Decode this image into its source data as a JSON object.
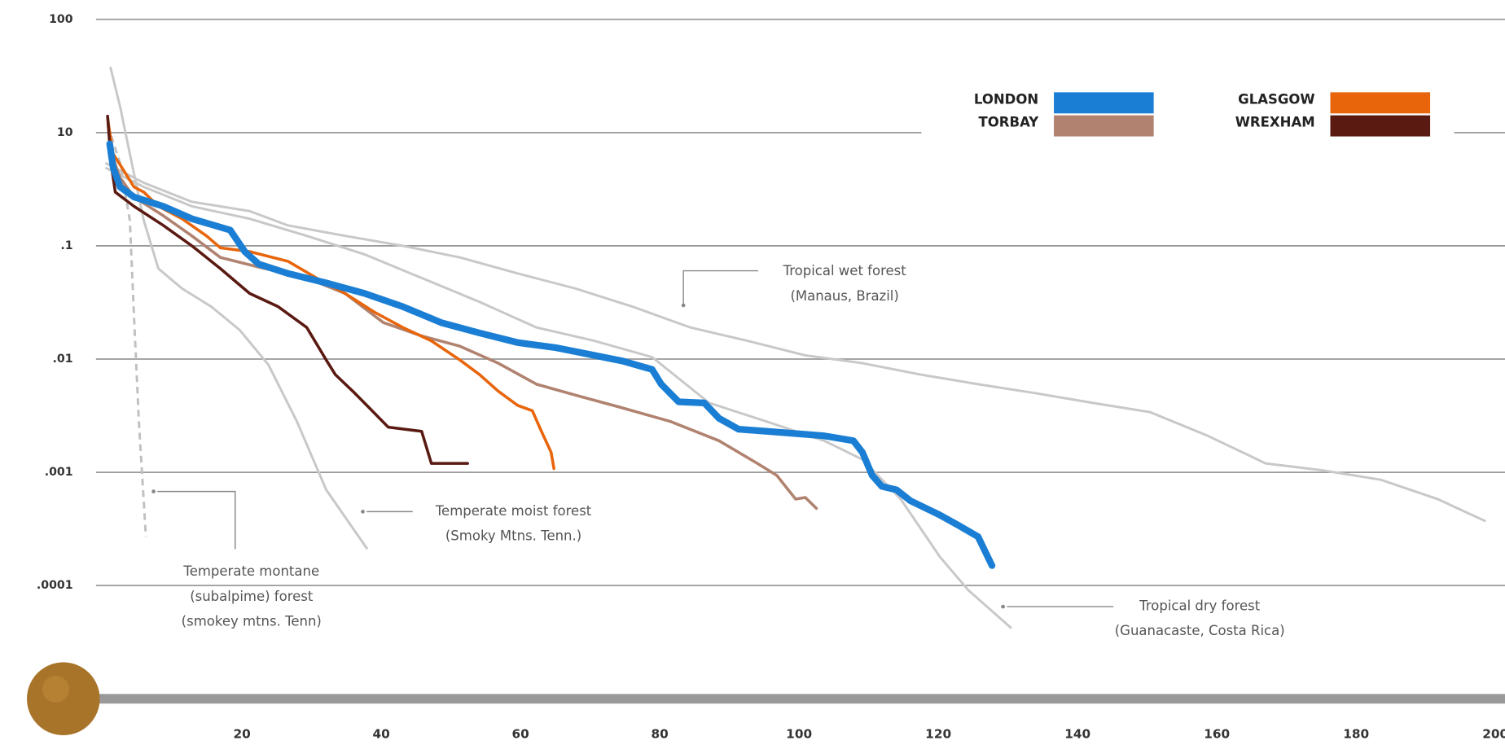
{
  "chart_data": {
    "type": "line",
    "yscale": "log",
    "grid": true,
    "legend": "top-right",
    "xlim": [
      0,
      200
    ],
    "xticks": [
      20,
      40,
      60,
      80,
      100,
      120,
      140,
      160,
      180,
      200
    ],
    "ylim": [
      1e-05,
      100
    ],
    "yticks": [
      100,
      10,
      {
        "value": 0.1,
        "label": ".1"
      },
      {
        "value": 0.01,
        "label": ".01"
      },
      {
        "value": 0.001,
        "label": ".001"
      },
      {
        "value": 0.0001,
        "label": ".0001"
      }
    ],
    "series": [
      {
        "name": "LONDON",
        "color": "#1a7fd4",
        "x": [
          1,
          1.5,
          2.5,
          4.5,
          8.7,
          12.8,
          18.3,
          20.4,
          22.4,
          26.6,
          32.1,
          37.6,
          43.1,
          48.6,
          54.1,
          59.6,
          65.1,
          70.6,
          74.7,
          78.9,
          80.2,
          82.7,
          86.4,
          88.5,
          91.3,
          95.4,
          103.6,
          107.8,
          109.1,
          110.5,
          111.9,
          114,
          116,
          120.2,
          122.9,
          125.7,
          127.7
        ],
        "values": [
          6.3,
          2.4,
          1.1,
          0.73,
          0.5,
          0.3,
          0.19,
          0.089,
          0.069,
          0.057,
          0.047,
          0.038,
          0.029,
          0.021,
          0.017,
          0.014,
          0.0126,
          0.0108,
          0.0096,
          0.0081,
          0.006,
          0.0042,
          0.0041,
          0.003,
          0.0024,
          0.0023,
          0.0021,
          0.0019,
          0.0015,
          0.00094,
          0.00075,
          0.0007,
          0.00056,
          0.00042,
          0.00034,
          0.00027,
          0.00015
        ]
      },
      {
        "name": "TORBAY",
        "color": "#b0826f",
        "x": [
          0.7,
          1.5,
          2.5,
          4.5,
          8.7,
          12.8,
          16.9,
          22.4,
          29.3,
          34.8,
          40.3,
          45.8,
          51.3,
          56.8,
          62.3,
          67.9,
          74.7,
          81.6,
          88.5,
          94,
          96.8,
          99.5,
          100.9,
          102.5
        ],
        "values": [
          13.7,
          3.5,
          1.6,
          0.73,
          0.34,
          0.15,
          0.079,
          0.065,
          0.052,
          0.038,
          0.021,
          0.016,
          0.013,
          0.0092,
          0.006,
          0.0048,
          0.0037,
          0.0028,
          0.0019,
          0.0012,
          0.00094,
          0.00058,
          0.0006,
          0.00048
        ]
      },
      {
        "name": "GLASGOW",
        "color": "#e8650c",
        "x": [
          0.8,
          1.5,
          2.5,
          4.5,
          5.9,
          8,
          11.4,
          14.9,
          16.9,
          21.1,
          26.6,
          30.7,
          34.8,
          39,
          43.1,
          47.2,
          51.3,
          54.1,
          56.8,
          59.6,
          61.7,
          63,
          64.4,
          64.8
        ],
        "values": [
          12,
          4.2,
          2.7,
          1.1,
          0.89,
          0.5,
          0.3,
          0.15,
          0.096,
          0.089,
          0.073,
          0.052,
          0.038,
          0.026,
          0.019,
          0.0145,
          0.0098,
          0.0073,
          0.0052,
          0.0039,
          0.0035,
          0.0023,
          0.0015,
          0.00108
        ]
      },
      {
        "name": "WREXHAM",
        "color": "#5a1a12",
        "x": [
          0.7,
          1.2,
          1.8,
          4.5,
          8.7,
          12.8,
          16.9,
          21.1,
          25.2,
          29.3,
          32.1,
          33.4,
          36.2,
          38.3,
          41,
          45.8,
          47.2,
          52.4
        ],
        "values": [
          14,
          2.9,
          0.89,
          0.5,
          0.23,
          0.1,
          0.063,
          0.038,
          0.029,
          0.019,
          0.0098,
          0.0073,
          0.005,
          0.0037,
          0.0025,
          0.0023,
          0.0012,
          0.0012
        ]
      }
    ],
    "reference_series": [
      {
        "label": [
          "Tropical wet forest",
          "(Manaus, Brazil)"
        ],
        "color": "#c8c8c8",
        "dashed": false,
        "x": [
          0.4,
          5.9,
          12.8,
          21.1,
          26.6,
          34.8,
          43.1,
          51.3,
          59.6,
          67.9,
          76.1,
          84.4,
          92.6,
          100.9,
          109.1,
          117.4,
          125.7,
          133.9,
          142.2,
          150.4,
          158.7,
          167,
          175.2,
          183.5,
          191.7,
          198.6
        ],
        "values": [
          2.9,
          1.3,
          0.6,
          0.41,
          0.23,
          0.15,
          0.1,
          0.079,
          0.057,
          0.042,
          0.029,
          0.019,
          0.0145,
          0.0108,
          0.0092,
          0.0073,
          0.006,
          0.005,
          0.0041,
          0.0034,
          0.0021,
          0.0012,
          0.00104,
          0.00086,
          0.00058,
          0.00037
        ]
      },
      {
        "label": [
          "Temperate moist forest",
          "(Smoky Mtns. Tenn.)"
        ],
        "color": "#c8c8c8",
        "dashed": false,
        "x": [
          1.1,
          2.5,
          3.9,
          5.9,
          8,
          11.4,
          15.6,
          19.7,
          23.8,
          27.9,
          32.1,
          38
        ],
        "values": [
          38,
          17,
          4.2,
          0.28,
          0.063,
          0.042,
          0.029,
          0.018,
          0.0089,
          0.0028,
          0.0007,
          0.00021
        ]
      },
      {
        "label": [
          "Temperate montane",
          "(subalpime) forest",
          "(smokey mtns. Tenn)"
        ],
        "color": "#c0c0c0",
        "dashed": true,
        "x": [
          0.7,
          2.5,
          3.9,
          4.5,
          5.2,
          6.2
        ],
        "values": [
          11.7,
          2.9,
          0.28,
          0.024,
          0.0028,
          0.00027
        ]
      },
      {
        "label": [
          "Tropical dry forest",
          "(Guanacaste, Costa Rica)"
        ],
        "color": "#c8c8c8",
        "dashed": false,
        "x": [
          0.4,
          5.9,
          12.8,
          21.1,
          29.3,
          37.6,
          45.8,
          54.1,
          62.3,
          70.6,
          78.9,
          87.1,
          95.4,
          103.6,
          109.1,
          114.6,
          120.2,
          124.3,
          130.5
        ],
        "values": [
          2.4,
          1.1,
          0.5,
          0.3,
          0.15,
          0.084,
          0.052,
          0.032,
          0.019,
          0.0145,
          0.0104,
          0.0041,
          0.0028,
          0.0019,
          0.0013,
          0.00058,
          0.00018,
          9.1e-05,
          4.2e-05
        ]
      }
    ]
  }
}
